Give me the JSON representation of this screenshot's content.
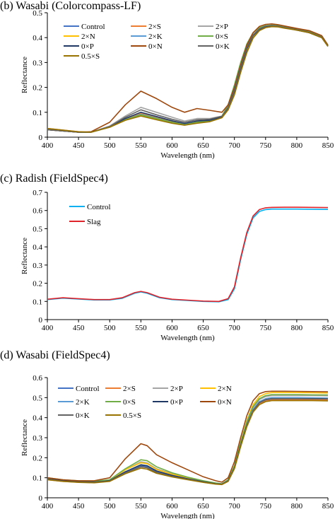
{
  "panels": [
    {
      "id": "b",
      "title": "(b) Wasabi (Colorcompass-LF)",
      "chart_data": {
        "type": "line",
        "xlabel": "Wavelength (nm)",
        "ylabel": "Reflectance",
        "xlim": [
          400,
          850
        ],
        "ylim": [
          0,
          0.5
        ],
        "xticks": [
          400,
          450,
          500,
          550,
          600,
          650,
          700,
          750,
          800,
          850
        ],
        "yticks": [
          0,
          0.1,
          0.2,
          0.3,
          0.4,
          0.5
        ],
        "x": [
          400,
          450,
          470,
          500,
          525,
          550,
          575,
          600,
          620,
          640,
          660,
          680,
          690,
          700,
          710,
          720,
          730,
          740,
          750,
          760,
          770,
          780,
          800,
          820,
          840,
          850
        ],
        "legend_columns": 3,
        "series": [
          {
            "name": "Control",
            "color": "#4472c4",
            "values": [
              0.03,
              0.02,
              0.02,
              0.04,
              0.07,
              0.09,
              0.075,
              0.06,
              0.05,
              0.06,
              0.065,
              0.08,
              0.12,
              0.19,
              0.28,
              0.36,
              0.41,
              0.435,
              0.445,
              0.447,
              0.445,
              0.44,
              0.43,
              0.42,
              0.4,
              0.365
            ]
          },
          {
            "name": "2×S",
            "color": "#ed7d31",
            "values": [
              0.035,
              0.022,
              0.02,
              0.042,
              0.072,
              0.095,
              0.078,
              0.062,
              0.052,
              0.063,
              0.068,
              0.082,
              0.115,
              0.18,
              0.27,
              0.35,
              0.405,
              0.43,
              0.443,
              0.446,
              0.445,
              0.44,
              0.432,
              0.425,
              0.405,
              0.37
            ]
          },
          {
            "name": "2×P",
            "color": "#a5a5a5",
            "values": [
              0.032,
              0.021,
              0.02,
              0.045,
              0.085,
              0.12,
              0.1,
              0.08,
              0.065,
              0.075,
              0.075,
              0.085,
              0.12,
              0.19,
              0.28,
              0.36,
              0.412,
              0.437,
              0.448,
              0.45,
              0.447,
              0.442,
              0.435,
              0.425,
              0.405,
              0.37
            ]
          },
          {
            "name": "2×N",
            "color": "#ffc000",
            "values": [
              0.03,
              0.02,
              0.02,
              0.04,
              0.068,
              0.088,
              0.073,
              0.058,
              0.05,
              0.058,
              0.063,
              0.078,
              0.11,
              0.175,
              0.265,
              0.345,
              0.4,
              0.43,
              0.442,
              0.445,
              0.444,
              0.44,
              0.43,
              0.42,
              0.4,
              0.365
            ]
          },
          {
            "name": "2×K",
            "color": "#5b9bd5",
            "values": [
              0.03,
              0.02,
              0.02,
              0.04,
              0.07,
              0.092,
              0.076,
              0.06,
              0.051,
              0.06,
              0.065,
              0.08,
              0.118,
              0.185,
              0.275,
              0.355,
              0.408,
              0.433,
              0.445,
              0.448,
              0.446,
              0.44,
              0.432,
              0.422,
              0.402,
              0.368
            ]
          },
          {
            "name": "0×S",
            "color": "#70ad47",
            "values": [
              0.03,
              0.02,
              0.02,
              0.04,
              0.07,
              0.09,
              0.075,
              0.06,
              0.05,
              0.06,
              0.066,
              0.085,
              0.13,
              0.21,
              0.3,
              0.375,
              0.42,
              0.44,
              0.448,
              0.45,
              0.448,
              0.443,
              0.435,
              0.425,
              0.405,
              0.37
            ]
          },
          {
            "name": "0×P",
            "color": "#1f3864",
            "values": [
              0.03,
              0.02,
              0.02,
              0.042,
              0.075,
              0.1,
              0.083,
              0.066,
              0.055,
              0.065,
              0.068,
              0.082,
              0.118,
              0.185,
              0.275,
              0.355,
              0.408,
              0.433,
              0.445,
              0.447,
              0.445,
              0.44,
              0.43,
              0.42,
              0.4,
              0.365
            ]
          },
          {
            "name": "0×N",
            "color": "#9e480e",
            "values": [
              0.03,
              0.02,
              0.022,
              0.06,
              0.13,
              0.185,
              0.155,
              0.12,
              0.1,
              0.115,
              0.108,
              0.1,
              0.13,
              0.2,
              0.29,
              0.37,
              0.42,
              0.445,
              0.453,
              0.455,
              0.452,
              0.447,
              0.437,
              0.428,
              0.408,
              0.37
            ]
          },
          {
            "name": "0×K",
            "color": "#636363",
            "values": [
              0.03,
              0.02,
              0.02,
              0.043,
              0.08,
              0.11,
              0.09,
              0.072,
              0.06,
              0.07,
              0.072,
              0.084,
              0.12,
              0.19,
              0.28,
              0.36,
              0.41,
              0.435,
              0.446,
              0.448,
              0.446,
              0.441,
              0.432,
              0.422,
              0.402,
              0.366
            ]
          },
          {
            "name": "0.5×S",
            "color": "#997300",
            "values": [
              0.035,
              0.022,
              0.02,
              0.04,
              0.068,
              0.085,
              0.07,
              0.056,
              0.048,
              0.056,
              0.062,
              0.078,
              0.11,
              0.17,
              0.26,
              0.34,
              0.398,
              0.428,
              0.44,
              0.444,
              0.443,
              0.438,
              0.43,
              0.42,
              0.4,
              0.365
            ]
          }
        ]
      }
    },
    {
      "id": "c",
      "title": "(c) Radish (FieldSpec4)",
      "chart_data": {
        "type": "line",
        "xlabel": "Wavelength (nm)",
        "ylabel": "Reflectance",
        "xlim": [
          400,
          850
        ],
        "ylim": [
          0,
          0.7
        ],
        "xticks": [
          400,
          450,
          500,
          550,
          600,
          650,
          700,
          750,
          800,
          850
        ],
        "yticks": [
          0,
          0.1,
          0.2,
          0.3,
          0.4,
          0.5,
          0.6,
          0.7
        ],
        "x": [
          400,
          425,
          450,
          475,
          500,
          520,
          540,
          550,
          560,
          580,
          600,
          625,
          650,
          675,
          690,
          700,
          710,
          720,
          730,
          740,
          750,
          760,
          780,
          800,
          825,
          850
        ],
        "legend_columns": 1,
        "series": [
          {
            "name": "Control",
            "color": "#00b0f0",
            "values": [
              0.11,
              0.118,
              0.113,
              0.108,
              0.108,
              0.117,
              0.145,
              0.152,
              0.145,
              0.12,
              0.11,
              0.105,
              0.1,
              0.098,
              0.11,
              0.17,
              0.33,
              0.47,
              0.56,
              0.595,
              0.605,
              0.608,
              0.608,
              0.608,
              0.607,
              0.606
            ]
          },
          {
            "name": "Slag",
            "color": "#e0242c",
            "values": [
              0.112,
              0.12,
              0.115,
              0.11,
              0.11,
              0.12,
              0.148,
              0.155,
              0.148,
              0.123,
              0.112,
              0.107,
              0.102,
              0.1,
              0.115,
              0.18,
              0.34,
              0.48,
              0.57,
              0.605,
              0.615,
              0.617,
              0.618,
              0.618,
              0.617,
              0.616
            ]
          }
        ]
      }
    },
    {
      "id": "d",
      "title": "(d) Wasabi (FieldSpec4)",
      "chart_data": {
        "type": "line",
        "xlabel": "Wavelength (nm)",
        "ylabel": "Reflectance",
        "xlim": [
          400,
          850
        ],
        "ylim": [
          0,
          0.6
        ],
        "xticks": [
          400,
          450,
          500,
          550,
          600,
          650,
          700,
          750,
          800,
          850
        ],
        "yticks": [
          0,
          0.1,
          0.2,
          0.3,
          0.4,
          0.5,
          0.6
        ],
        "x": [
          400,
          425,
          450,
          475,
          500,
          525,
          550,
          560,
          575,
          600,
          625,
          650,
          670,
          680,
          690,
          700,
          710,
          720,
          730,
          740,
          750,
          760,
          780,
          800,
          825,
          850
        ],
        "legend_columns": 4,
        "series": [
          {
            "name": "Control",
            "color": "#4472c4",
            "values": [
              0.095,
              0.085,
              0.08,
              0.078,
              0.085,
              0.13,
              0.16,
              0.155,
              0.13,
              0.11,
              0.095,
              0.08,
              0.07,
              0.068,
              0.085,
              0.15,
              0.26,
              0.36,
              0.43,
              0.47,
              0.485,
              0.49,
              0.49,
              0.49,
              0.49,
              0.49
            ]
          },
          {
            "name": "2×S",
            "color": "#ed7d31",
            "values": [
              0.09,
              0.082,
              0.078,
              0.076,
              0.083,
              0.125,
              0.155,
              0.15,
              0.127,
              0.108,
              0.093,
              0.079,
              0.07,
              0.067,
              0.083,
              0.148,
              0.258,
              0.358,
              0.428,
              0.468,
              0.483,
              0.488,
              0.489,
              0.489,
              0.489,
              0.488
            ]
          },
          {
            "name": "2×P",
            "color": "#a5a5a5",
            "values": [
              0.095,
              0.086,
              0.08,
              0.078,
              0.086,
              0.14,
              0.18,
              0.174,
              0.145,
              0.12,
              0.1,
              0.083,
              0.072,
              0.069,
              0.087,
              0.155,
              0.27,
              0.375,
              0.45,
              0.49,
              0.505,
              0.51,
              0.51,
              0.51,
              0.51,
              0.509
            ]
          },
          {
            "name": "2×N",
            "color": "#ffc000",
            "values": [
              0.098,
              0.088,
              0.082,
              0.08,
              0.088,
              0.14,
              0.175,
              0.17,
              0.142,
              0.118,
              0.099,
              0.082,
              0.072,
              0.069,
              0.088,
              0.158,
              0.275,
              0.385,
              0.465,
              0.505,
              0.52,
              0.525,
              0.525,
              0.525,
              0.524,
              0.523
            ]
          },
          {
            "name": "2×K",
            "color": "#5b9bd5",
            "values": [
              0.093,
              0.084,
              0.079,
              0.077,
              0.084,
              0.13,
              0.165,
              0.16,
              0.134,
              0.112,
              0.095,
              0.08,
              0.07,
              0.068,
              0.085,
              0.15,
              0.262,
              0.365,
              0.44,
              0.48,
              0.495,
              0.5,
              0.5,
              0.5,
              0.499,
              0.498
            ]
          },
          {
            "name": "0×S",
            "color": "#70ad47",
            "values": [
              0.1,
              0.09,
              0.085,
              0.083,
              0.09,
              0.145,
              0.19,
              0.185,
              0.155,
              0.125,
              0.103,
              0.085,
              0.074,
              0.07,
              0.09,
              0.16,
              0.275,
              0.38,
              0.455,
              0.495,
              0.51,
              0.515,
              0.515,
              0.515,
              0.514,
              0.513
            ]
          },
          {
            "name": "0×P",
            "color": "#1f3864",
            "values": [
              0.094,
              0.085,
              0.08,
              0.078,
              0.085,
              0.13,
              0.165,
              0.16,
              0.134,
              0.112,
              0.095,
              0.08,
              0.07,
              0.068,
              0.085,
              0.15,
              0.262,
              0.362,
              0.435,
              0.475,
              0.49,
              0.495,
              0.495,
              0.495,
              0.495,
              0.494
            ]
          },
          {
            "name": "0×N",
            "color": "#9e480e",
            "values": [
              0.1,
              0.09,
              0.085,
              0.085,
              0.1,
              0.195,
              0.27,
              0.26,
              0.215,
              0.175,
              0.14,
              0.105,
              0.085,
              0.078,
              0.1,
              0.18,
              0.3,
              0.41,
              0.485,
              0.52,
              0.53,
              0.532,
              0.532,
              0.531,
              0.53,
              0.529
            ]
          },
          {
            "name": "0×K",
            "color": "#636363",
            "values": [
              0.092,
              0.083,
              0.078,
              0.076,
              0.083,
              0.125,
              0.155,
              0.15,
              0.127,
              0.107,
              0.092,
              0.078,
              0.069,
              0.067,
              0.083,
              0.148,
              0.258,
              0.36,
              0.435,
              0.475,
              0.49,
              0.495,
              0.495,
              0.495,
              0.494,
              0.493
            ]
          },
          {
            "name": "0.5×S",
            "color": "#997300",
            "values": [
              0.09,
              0.082,
              0.077,
              0.075,
              0.082,
              0.12,
              0.148,
              0.143,
              0.122,
              0.104,
              0.09,
              0.077,
              0.068,
              0.066,
              0.082,
              0.145,
              0.255,
              0.355,
              0.428,
              0.465,
              0.48,
              0.485,
              0.485,
              0.485,
              0.485,
              0.484
            ]
          }
        ]
      }
    }
  ]
}
